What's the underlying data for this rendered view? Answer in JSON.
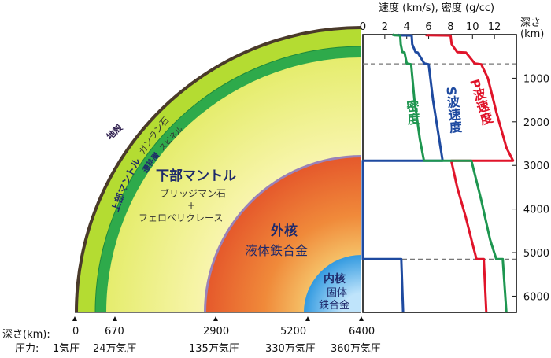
{
  "earth": {
    "crust_label": "地殻",
    "upper_mantle_label": "上部マントル",
    "garnet_label": "ガンラン石",
    "transition_label": "遷移層",
    "spinel_label": "スピネル",
    "lower_mantle_title": "下部マントル",
    "lower_mantle_mineral1": "ブリッジマン石",
    "plus_sign": "+",
    "lower_mantle_mineral2": "フェロペリクレース",
    "outer_core_title": "外核",
    "outer_core_desc": "液体鉄合金",
    "inner_core_title": "内核",
    "inner_core_desc1": "固体",
    "inner_core_desc2": "鉄合金",
    "colors": {
      "crust": "#4a3a2a",
      "upper_mantle": "#b4dc32",
      "transition": "#2eaa4b",
      "lower_mantle": "#f3f08c",
      "outer_core": "#e8632a",
      "inner_core": "#2a96dc"
    }
  },
  "depth_scale": {
    "depth_label": "深さ(km):",
    "pressure_label": "圧力:",
    "ticks": [
      {
        "depth": "0",
        "pressure": "1気圧"
      },
      {
        "depth": "670",
        "pressure": "24万気圧"
      },
      {
        "depth": "2900",
        "pressure": "135万気圧"
      },
      {
        "depth": "5200",
        "pressure": "330万気圧"
      },
      {
        "depth": "6400",
        "pressure": "360万気圧"
      }
    ]
  },
  "chart_data": {
    "type": "line",
    "title": "速度 (km/s), 密度 (g/cc)",
    "ylabel_line1": "深さ",
    "ylabel_line2": "(km)",
    "xlim": [
      0,
      14
    ],
    "ylim": [
      0,
      6371
    ],
    "x_ticks": [
      0,
      2,
      4,
      6,
      8,
      10,
      12
    ],
    "y_ticks": [
      1000,
      2000,
      3000,
      4000,
      5000,
      6000
    ],
    "grid": false,
    "dashed_lines": [
      670,
      5150
    ],
    "series": [
      {
        "name": "P波速度",
        "color": "#e0142a",
        "points": [
          [
            5.8,
            0
          ],
          [
            5.8,
            15
          ],
          [
            8.0,
            20
          ],
          [
            8.1,
            220
          ],
          [
            8.6,
            400
          ],
          [
            9.4,
            410
          ],
          [
            10.2,
            660
          ],
          [
            10.8,
            680
          ],
          [
            11.4,
            1000
          ],
          [
            12.2,
            1800
          ],
          [
            13.1,
            2600
          ],
          [
            13.7,
            2891
          ],
          [
            8.06,
            2891
          ],
          [
            8.6,
            3500
          ],
          [
            9.4,
            4200
          ],
          [
            10.0,
            4800
          ],
          [
            10.36,
            5150
          ],
          [
            11.03,
            5150
          ],
          [
            11.26,
            6371
          ]
        ]
      },
      {
        "name": "S波速度",
        "color": "#1e4aa0",
        "points": [
          [
            3.2,
            0
          ],
          [
            3.3,
            15
          ],
          [
            4.45,
            20
          ],
          [
            4.5,
            220
          ],
          [
            4.8,
            400
          ],
          [
            5.0,
            410
          ],
          [
            5.6,
            660
          ],
          [
            6.0,
            680
          ],
          [
            6.4,
            1500
          ],
          [
            6.9,
            2300
          ],
          [
            7.27,
            2891
          ],
          [
            0,
            2891
          ],
          [
            0,
            5150
          ],
          [
            3.5,
            5150
          ],
          [
            3.67,
            6371
          ]
        ]
      },
      {
        "name": "密度",
        "color": "#1e9650",
        "points": [
          [
            2.7,
            0
          ],
          [
            2.9,
            15
          ],
          [
            3.4,
            20
          ],
          [
            3.45,
            220
          ],
          [
            3.6,
            400
          ],
          [
            3.8,
            410
          ],
          [
            4.0,
            660
          ],
          [
            4.4,
            680
          ],
          [
            4.7,
            1500
          ],
          [
            5.2,
            2400
          ],
          [
            5.57,
            2891
          ],
          [
            9.9,
            2891
          ],
          [
            10.8,
            3800
          ],
          [
            11.6,
            4700
          ],
          [
            12.17,
            5150
          ],
          [
            12.76,
            5150
          ],
          [
            13.09,
            6371
          ]
        ]
      }
    ],
    "labels": {
      "p_wave": "P波速度",
      "s_wave": "S波速度",
      "density": "密度"
    }
  }
}
